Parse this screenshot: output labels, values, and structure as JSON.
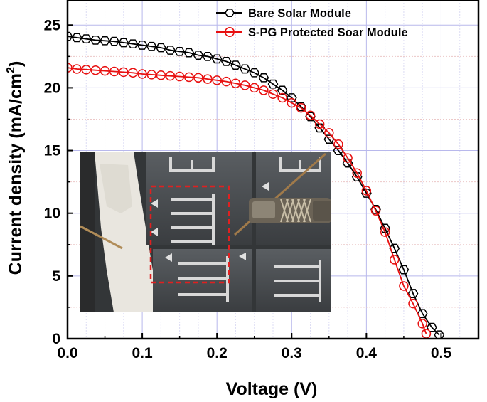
{
  "chart_data": {
    "type": "line",
    "xlabel": "Voltage (V)",
    "ylabel_main": "Current density (mA/cm",
    "ylabel_sup": "2",
    "ylabel_close": ")",
    "xlim": [
      0.0,
      0.55
    ],
    "ylim": [
      0,
      27
    ],
    "x_ticks": [
      "0.0",
      "0.1",
      "0.2",
      "0.3",
      "0.4",
      "0.5"
    ],
    "y_ticks": [
      "0",
      "5",
      "10",
      "15",
      "20",
      "25"
    ],
    "grid": true,
    "legend_position": "top-right",
    "inset_photo": true,
    "series": [
      {
        "name": "Bare Solar Module",
        "color": "#000000",
        "marker": "hexagon",
        "x": [
          0.0,
          0.0125,
          0.025,
          0.0375,
          0.05,
          0.0625,
          0.075,
          0.0875,
          0.1,
          0.1125,
          0.125,
          0.1375,
          0.15,
          0.1625,
          0.175,
          0.1875,
          0.2,
          0.2125,
          0.225,
          0.2375,
          0.25,
          0.2625,
          0.275,
          0.2875,
          0.3,
          0.3125,
          0.325,
          0.3375,
          0.35,
          0.3625,
          0.375,
          0.3875,
          0.4,
          0.4125,
          0.425,
          0.4375,
          0.45,
          0.4625,
          0.475,
          0.4875,
          0.4975
        ],
        "y": [
          24.1,
          24.0,
          23.9,
          23.8,
          23.75,
          23.7,
          23.6,
          23.5,
          23.4,
          23.3,
          23.2,
          23.0,
          22.9,
          22.8,
          22.6,
          22.5,
          22.3,
          22.1,
          21.8,
          21.5,
          21.2,
          20.8,
          20.3,
          19.8,
          19.2,
          18.5,
          17.7,
          16.8,
          15.9,
          15.0,
          14.0,
          12.9,
          11.6,
          10.3,
          8.8,
          7.2,
          5.5,
          3.6,
          2.0,
          0.9,
          0.3
        ]
      },
      {
        "name": "S-PG Protected Soar Module",
        "color": "#e81010",
        "marker": "circle",
        "x": [
          0.0,
          0.0125,
          0.025,
          0.0375,
          0.05,
          0.0625,
          0.075,
          0.0875,
          0.1,
          0.1125,
          0.125,
          0.1375,
          0.15,
          0.1625,
          0.175,
          0.1875,
          0.2,
          0.2125,
          0.225,
          0.2375,
          0.25,
          0.2625,
          0.275,
          0.2875,
          0.3,
          0.3125,
          0.325,
          0.3375,
          0.35,
          0.3625,
          0.375,
          0.3875,
          0.4,
          0.4125,
          0.425,
          0.4375,
          0.45,
          0.4625,
          0.475,
          0.48
        ],
        "y": [
          21.6,
          21.5,
          21.45,
          21.4,
          21.35,
          21.3,
          21.25,
          21.2,
          21.1,
          21.05,
          21.0,
          20.95,
          20.9,
          20.85,
          20.8,
          20.7,
          20.6,
          20.5,
          20.35,
          20.2,
          20.0,
          19.8,
          19.5,
          19.2,
          18.8,
          18.4,
          17.8,
          17.1,
          16.4,
          15.5,
          14.4,
          13.2,
          11.8,
          10.2,
          8.5,
          6.3,
          4.2,
          2.8,
          1.2,
          0.4
        ]
      }
    ]
  }
}
